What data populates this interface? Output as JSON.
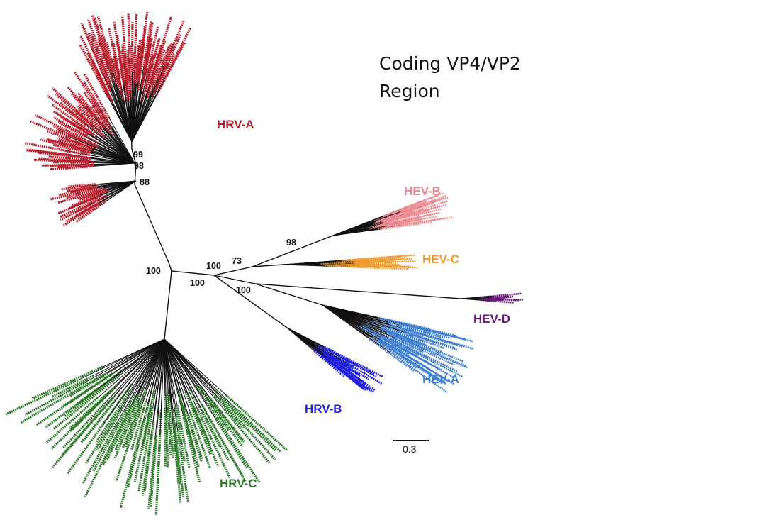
{
  "title": {
    "line1": "Coding VP4/VP2",
    "line2": "Region"
  },
  "scale_bar": {
    "label": "0.3",
    "value": 0.3
  },
  "colors": {
    "HRV-A": "#b81f2d",
    "HRV-B": "#2020e0",
    "HRV-C": "#2e7a2a",
    "HEV-A": "#3f7fd0",
    "HEV-B": "#ec8a92",
    "HEV-C": "#ee9b2e",
    "HEV-D": "#6a1a7a",
    "branch": "#111111"
  },
  "clades": [
    {
      "id": "hrv-a",
      "label": "HRV-A"
    },
    {
      "id": "hev-b",
      "label": "HEV-B"
    },
    {
      "id": "hev-c",
      "label": "HEV-C"
    },
    {
      "id": "hev-d",
      "label": "HEV-D"
    },
    {
      "id": "hev-a",
      "label": "HEV-A"
    },
    {
      "id": "hrv-b",
      "label": "HRV-B"
    },
    {
      "id": "hrv-c",
      "label": "HRV-C"
    }
  ],
  "bootstrap": [
    {
      "id": "hrv-a-99",
      "value": "99"
    },
    {
      "id": "hrv-a-98",
      "value": "98"
    },
    {
      "id": "hrv-a-88",
      "value": "88"
    },
    {
      "id": "hev-b-98",
      "value": "98"
    },
    {
      "id": "hev-73",
      "value": "73"
    },
    {
      "id": "hev-100",
      "value": "100"
    },
    {
      "id": "root-100",
      "value": "100"
    },
    {
      "id": "hrv-b-100",
      "value": "100"
    },
    {
      "id": "hev-ad-100",
      "value": "100"
    }
  ]
}
